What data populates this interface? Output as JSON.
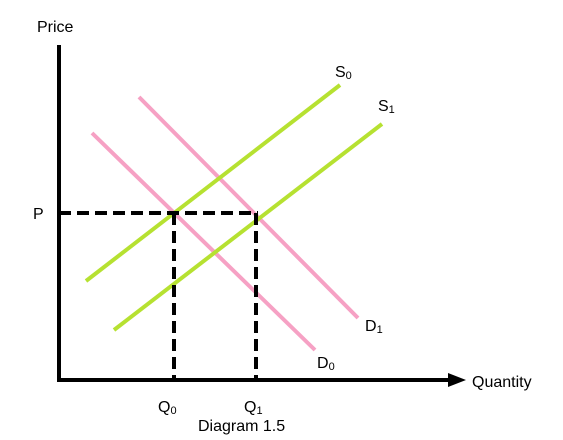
{
  "diagram": {
    "caption": "Diagram 1.5",
    "axes": {
      "y_label": "Price",
      "x_label": "Quantity"
    },
    "price_label": "P",
    "quantity_labels": [
      {
        "main": "Q",
        "sub": "0"
      },
      {
        "main": "Q",
        "sub": "1"
      }
    ],
    "curves": {
      "S0": {
        "main": "S",
        "sub": "0",
        "color": "#b6e131"
      },
      "S1": {
        "main": "S",
        "sub": "1",
        "color": "#b6e131"
      },
      "D0": {
        "main": "D",
        "sub": "0",
        "color": "#f6a1c4"
      },
      "D1": {
        "main": "D",
        "sub": "1",
        "color": "#f6a1c4"
      }
    },
    "colors": {
      "axis": "#000000",
      "guide": "#000000",
      "supply": "#b6e131",
      "demand": "#f6a1c4"
    }
  }
}
